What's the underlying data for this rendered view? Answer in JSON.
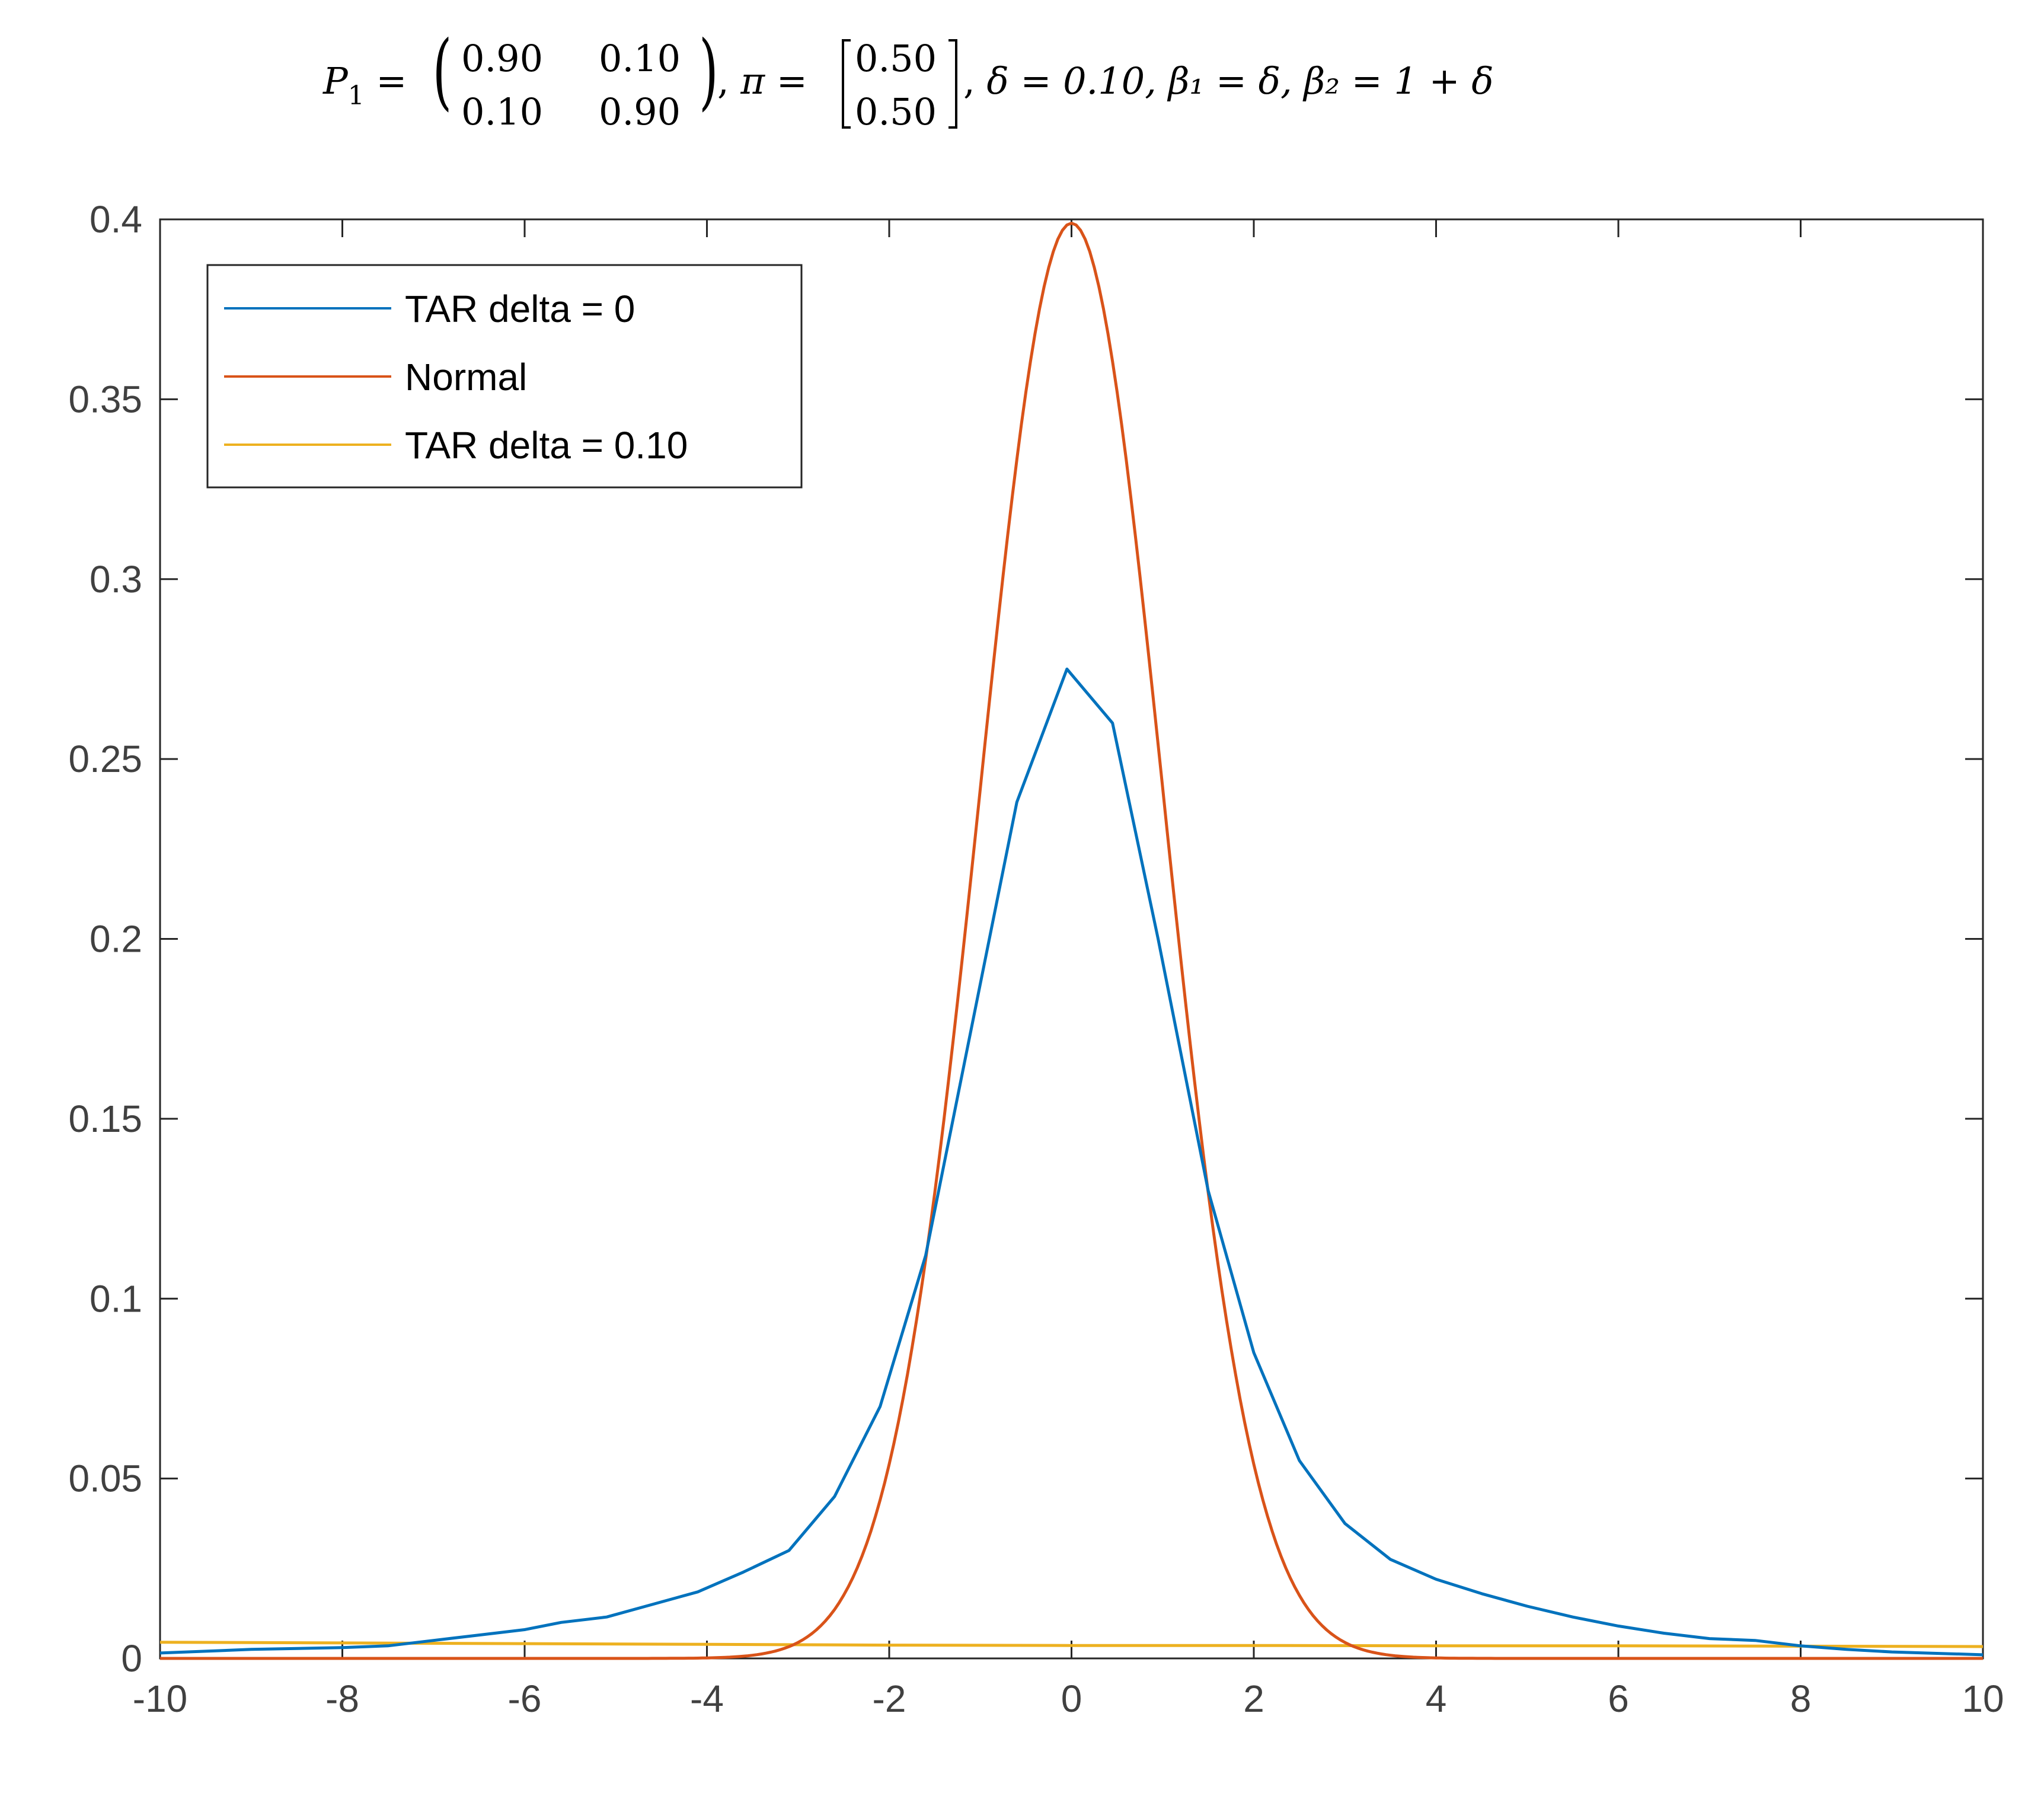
{
  "chart_data": {
    "type": "line",
    "title_parts": {
      "p_symbol": "P",
      "p_sub": "1",
      "matrix_row1": [
        "0.90",
        "0.10"
      ],
      "matrix_row2": [
        "0.10",
        "0.90"
      ],
      "pi_symbol": "π",
      "pi_row1": "0.50",
      "pi_row2": "0.50",
      "tail": "δ = 0.10, β₁ = δ, β₂ = 1 + δ"
    },
    "xlabel": "",
    "ylabel": "",
    "xlim": [
      -10,
      10
    ],
    "ylim": [
      0,
      0.4
    ],
    "x_ticks": [
      -10,
      -8,
      -6,
      -4,
      -2,
      0,
      2,
      4,
      6,
      8,
      10
    ],
    "x_tick_labels": [
      "-10",
      "-8",
      "-6",
      "-4",
      "-2",
      "0",
      "2",
      "4",
      "6",
      "8",
      "10"
    ],
    "y_ticks": [
      0,
      0.05,
      0.1,
      0.15,
      0.2,
      0.25,
      0.3,
      0.35,
      0.4
    ],
    "y_tick_labels": [
      "0",
      "0.05",
      "0.1",
      "0.15",
      "0.2",
      "0.25",
      "0.3",
      "0.35",
      "0.4"
    ],
    "grid": false,
    "legend_position": "top-left",
    "series": [
      {
        "name": "TAR delta = 0",
        "color": "#0072BD",
        "x": [
          -10,
          -9,
          -8,
          -7.5,
          -7,
          -6.5,
          -6,
          -5.6,
          -5.1,
          -4.6,
          -4.1,
          -3.6,
          -3.1,
          -2.6,
          -2.1,
          -1.6,
          -1.1,
          -0.6,
          -0.05,
          0.45,
          0.95,
          1.5,
          2.0,
          2.5,
          3.0,
          3.5,
          4.0,
          4.5,
          5.0,
          5.5,
          6.0,
          6.5,
          7.0,
          7.5,
          8.0,
          8.5,
          9.0,
          10
        ],
        "y": [
          0.0015,
          0.0025,
          0.003,
          0.0035,
          0.005,
          0.0065,
          0.008,
          0.01,
          0.0115,
          0.015,
          0.0185,
          0.024,
          0.03,
          0.045,
          0.07,
          0.112,
          0.175,
          0.238,
          0.275,
          0.26,
          0.2,
          0.13,
          0.085,
          0.055,
          0.0375,
          0.0275,
          0.022,
          0.018,
          0.0145,
          0.0115,
          0.009,
          0.007,
          0.0055,
          0.005,
          0.0035,
          0.0025,
          0.0018,
          0.001
        ]
      },
      {
        "name": "Normal",
        "color": "#D95319",
        "function": "standard_normal_pdf",
        "x_range": [
          -10,
          10
        ]
      },
      {
        "name": "TAR delta = 0.10",
        "color": "#EDB120",
        "x": [
          -10,
          -8,
          -6,
          -4,
          -2,
          0,
          2,
          4,
          6,
          8,
          10
        ],
        "y": [
          0.0045,
          0.0043,
          0.0041,
          0.0039,
          0.0037,
          0.0036,
          0.0036,
          0.0035,
          0.0035,
          0.0034,
          0.0033
        ]
      }
    ]
  }
}
